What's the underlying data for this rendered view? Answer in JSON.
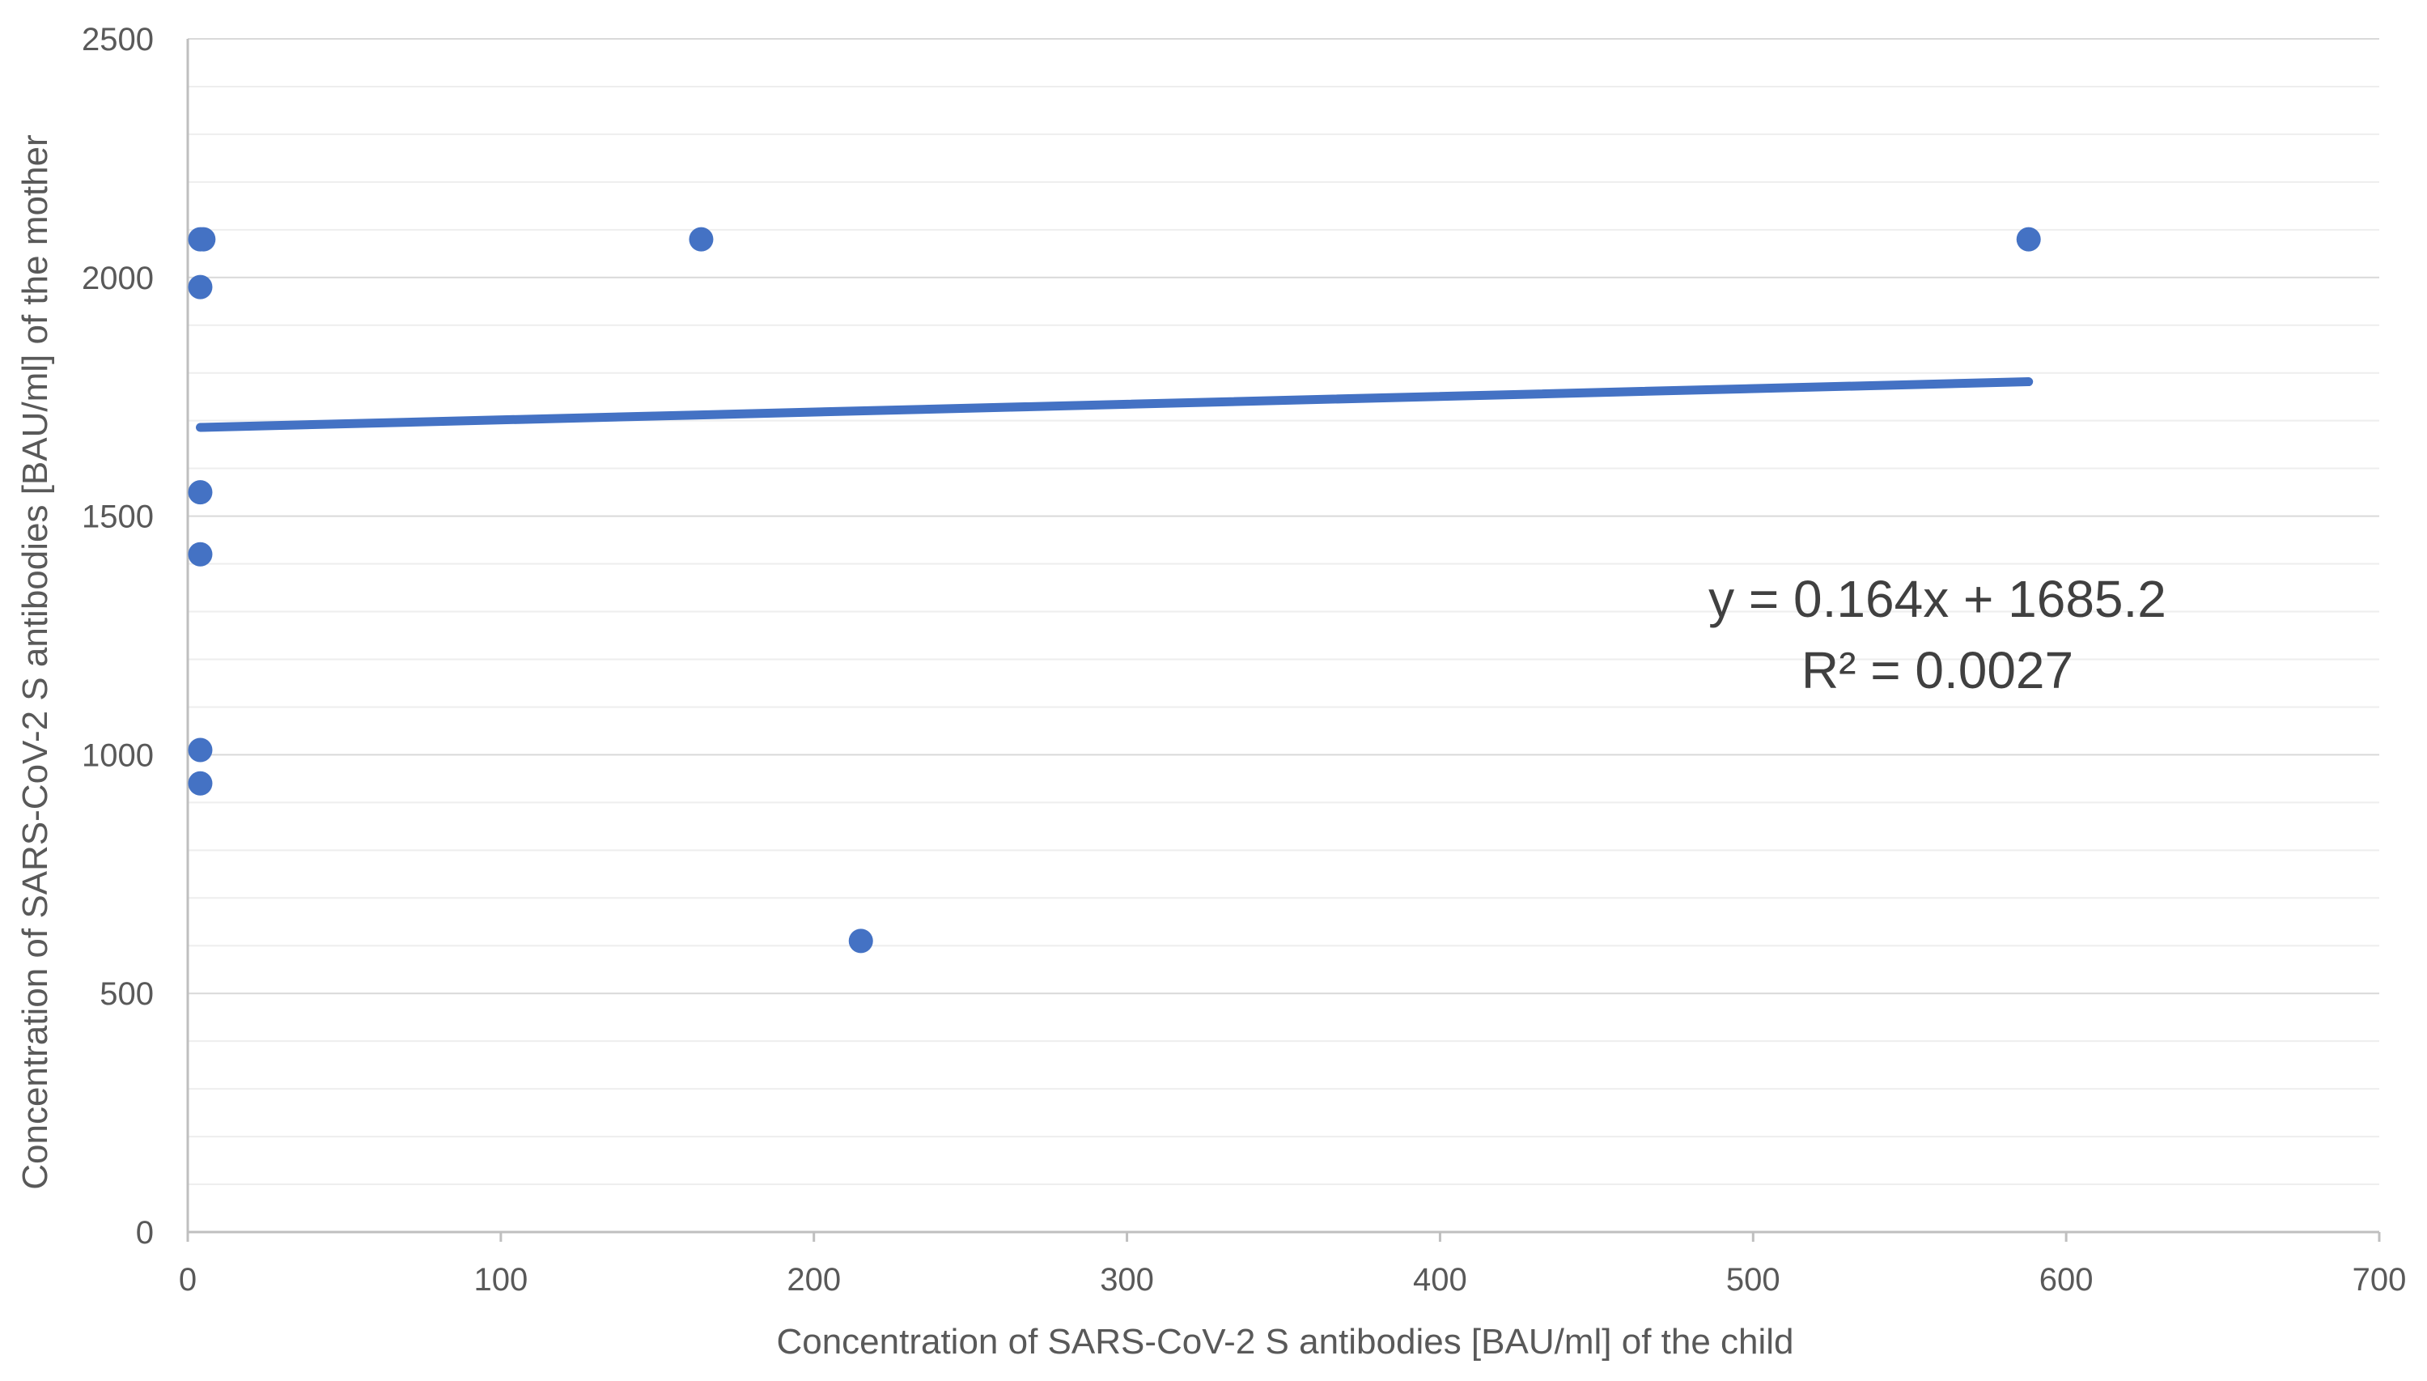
{
  "chart_data": {
    "type": "scatter",
    "title": "",
    "xlabel": "Concentration of SARS-CoV-2 S antibodies [BAU/ml] of the child",
    "ylabel": "Concentration of SARS-CoV-2 S antibodies [BAU/ml] of the mother",
    "xlim": [
      0,
      700
    ],
    "ylim": [
      0,
      2500
    ],
    "x_ticks": [
      0,
      100,
      200,
      300,
      400,
      500,
      600,
      700
    ],
    "y_ticks": [
      0,
      500,
      1000,
      1500,
      2000,
      2500
    ],
    "y_minor_step": 100,
    "grid": true,
    "legend": "none",
    "series": [
      {
        "name": "Mother vs child antibodies",
        "color": "#4472c4",
        "points": [
          {
            "x": 5,
            "y": 2080
          },
          {
            "x": 4,
            "y": 2080
          },
          {
            "x": 4,
            "y": 1980
          },
          {
            "x": 4,
            "y": 1550
          },
          {
            "x": 4,
            "y": 1420
          },
          {
            "x": 4,
            "y": 1010
          },
          {
            "x": 4,
            "y": 940
          },
          {
            "x": 164,
            "y": 2080
          },
          {
            "x": 215,
            "y": 610
          },
          {
            "x": 588,
            "y": 2080
          }
        ]
      }
    ],
    "trendline": {
      "type": "linear",
      "slope": 0.164,
      "intercept": 1685.2,
      "x_range": [
        4,
        588
      ],
      "color": "#4472c4",
      "equation": "y = 0.164x + 1685.2",
      "r2_label": "R² = 0.0027"
    }
  }
}
